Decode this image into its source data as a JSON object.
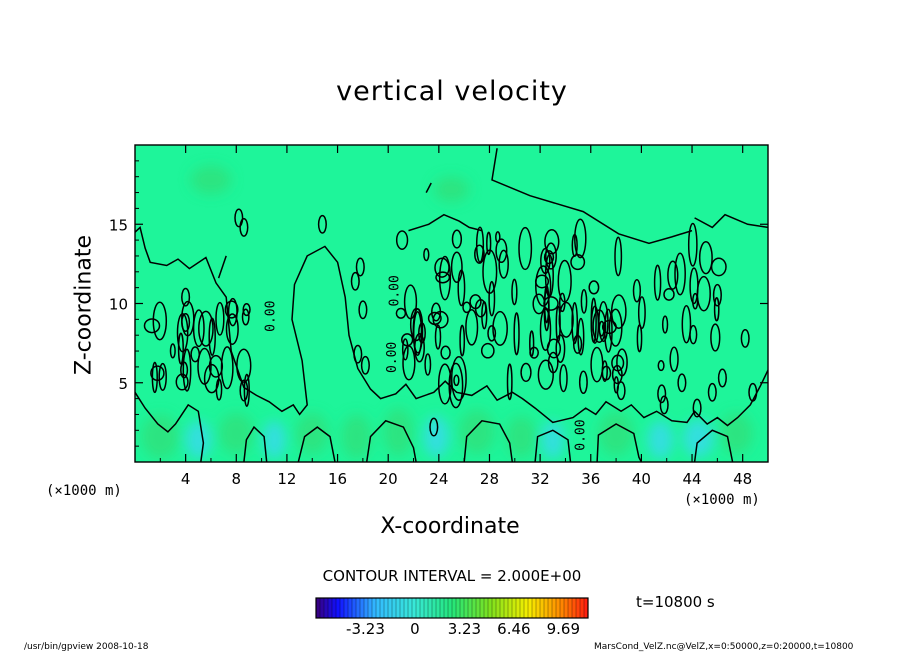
{
  "chart_data": {
    "type": "heatmap",
    "title": "vertical velocity",
    "xlabel": "X-coordinate",
    "ylabel": "Z-coordinate",
    "x_unit": "(×1000 m)",
    "x_unit_right": "(×1000 m)",
    "xlim": [
      0,
      50
    ],
    "ylim": [
      0,
      20
    ],
    "x_ticks": [
      "4",
      "8",
      "12",
      "16",
      "20",
      "24",
      "28",
      "32",
      "36",
      "40",
      "44",
      "48"
    ],
    "x_tick_values": [
      4,
      8,
      12,
      16,
      20,
      24,
      28,
      32,
      36,
      40,
      44,
      48
    ],
    "y_ticks": [
      "5",
      "10",
      "15"
    ],
    "y_tick_values": [
      5,
      10,
      15
    ],
    "contour_interval_text": "CONTOUR INTERVAL = 2.000E+00",
    "contour_interval": 2.0,
    "zero_labels": [
      {
        "x": 11.0,
        "y": 9.2,
        "text": "0.00"
      },
      {
        "x": 20.8,
        "y": 10.8,
        "text": "0.00"
      },
      {
        "x": 20.6,
        "y": 6.6,
        "text": "0.00"
      },
      {
        "x": 35.5,
        "y": 1.7,
        "text": "0.00"
      }
    ],
    "colorbar": {
      "ticks": [
        "-3.23",
        "0",
        "3.23",
        "6.46",
        "9.69"
      ],
      "tick_values": [
        -3.23,
        0,
        3.23,
        6.46,
        9.69
      ],
      "range": [
        -6.46,
        11.3
      ]
    },
    "time_label": "t=10800 s"
  },
  "footer": {
    "left": "/usr/bin/gpview   2008-10-18",
    "right": "MarsCond_VelZ.nc@VelZ,x=0:50000,z=0:20000,t=10800"
  },
  "colors": {
    "field": "#1ef59a",
    "updraft": "#2ee07a",
    "downdraft": "#39d9ee"
  }
}
